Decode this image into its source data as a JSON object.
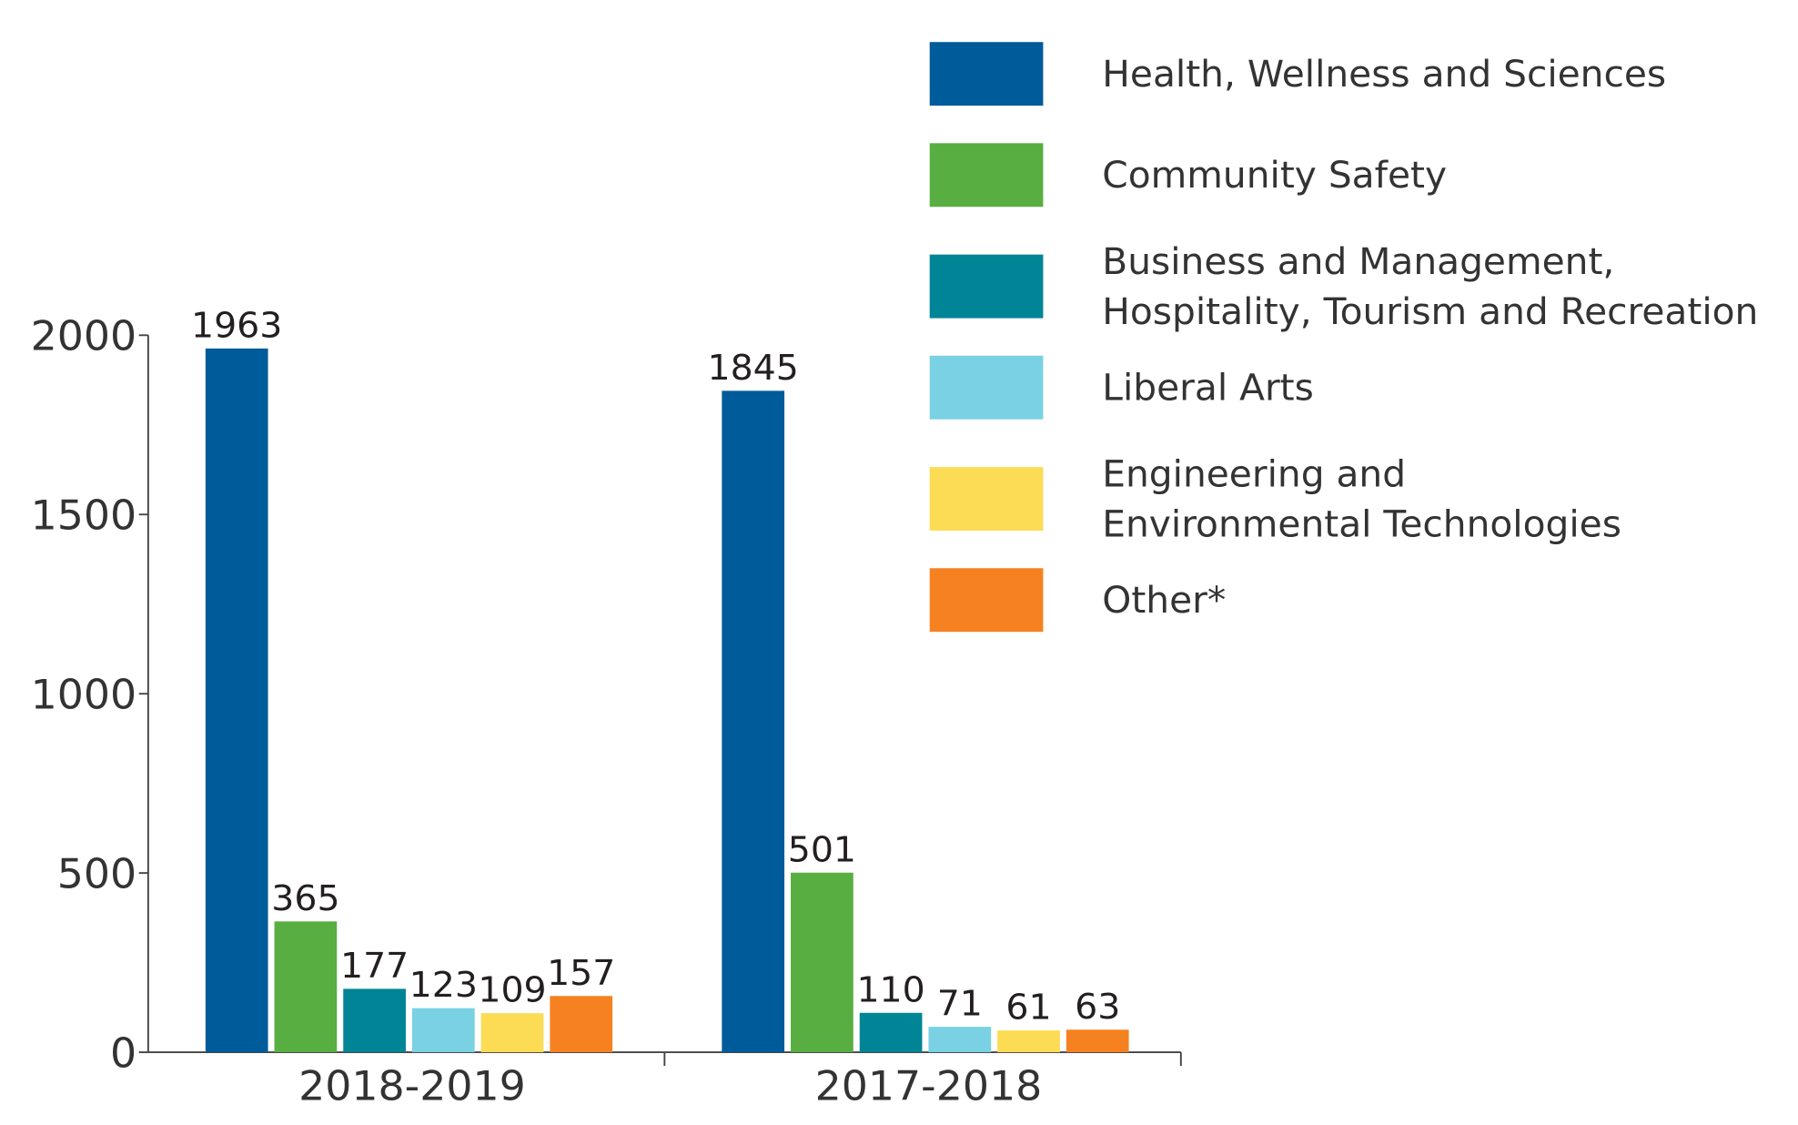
{
  "chart_data": {
    "type": "bar",
    "categories": [
      "2018-2019",
      "2017-2018"
    ],
    "series": [
      {
        "name": "Health, Wellness and Sciences",
        "color": "#005b9a",
        "values": [
          1963,
          1845
        ]
      },
      {
        "name": "Community Safety",
        "color": "#58ae40",
        "values": [
          365,
          501
        ]
      },
      {
        "name": "Business and Management,\nHospitality, Tourism and Recreation",
        "color": "#008596",
        "values": [
          177,
          110
        ]
      },
      {
        "name": "Liberal Arts",
        "color": "#79d1e3",
        "values": [
          123,
          71
        ]
      },
      {
        "name": "Engineering and\nEnvironmental Technologies",
        "color": "#fddc55",
        "values": [
          109,
          61
        ]
      },
      {
        "name": "Other*",
        "color": "#f68121",
        "values": [
          157,
          63
        ]
      }
    ],
    "ylim": [
      0,
      2000
    ],
    "yticks": [
      0,
      500,
      1000,
      1500,
      2000
    ],
    "grid": false,
    "legend": "upper right"
  }
}
